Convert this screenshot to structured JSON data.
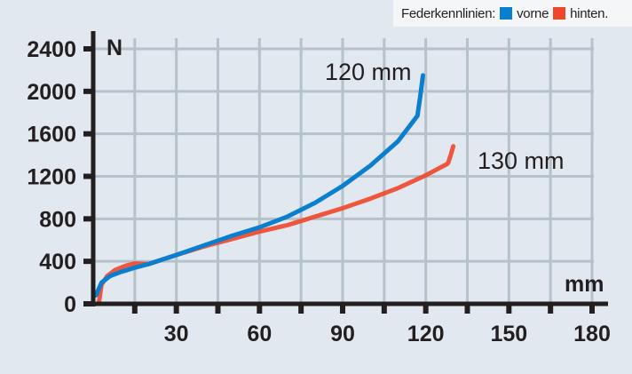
{
  "legend": {
    "title": "Federkennlinien:",
    "items": [
      {
        "label": "vorne",
        "color": "#0a7fd0"
      },
      {
        "label": "hinten.",
        "color": "#f0462a"
      }
    ]
  },
  "axes": {
    "y_unit": "N",
    "x_unit": "mm",
    "y_ticks": [
      "2400",
      "2000",
      "1600",
      "1200",
      "800",
      "400",
      "0"
    ],
    "x_ticks": [
      "30",
      "60",
      "90",
      "120",
      "150",
      "180"
    ]
  },
  "annotations": {
    "front": "120 mm",
    "rear": "130 mm"
  },
  "colors": {
    "front": "#0a7fd0",
    "rear": "#f0462a",
    "grid": "#b5c2ca",
    "axis": "#231f20",
    "background": "#e2e8ef"
  },
  "chart_data": {
    "type": "line",
    "title": "Federkennlinien",
    "xlabel": "mm",
    "ylabel": "N",
    "xlim": [
      0,
      180
    ],
    "ylim": [
      0,
      2400
    ],
    "x_ticks": [
      30,
      60,
      90,
      120,
      150,
      180
    ],
    "y_ticks": [
      0,
      400,
      800,
      1200,
      1600,
      2000,
      2400
    ],
    "grid": true,
    "legend_position": "top-right",
    "annotations": [
      {
        "text": "120 mm",
        "near_series": "vorne"
      },
      {
        "text": "130 mm",
        "near_series": "hinten"
      }
    ],
    "series": [
      {
        "name": "vorne",
        "color": "#0a7fd0",
        "x": [
          1,
          3,
          6,
          10,
          15,
          20,
          30,
          40,
          50,
          60,
          70,
          80,
          90,
          100,
          110,
          117,
          118,
          119
        ],
        "y": [
          80,
          200,
          260,
          300,
          340,
          375,
          460,
          550,
          640,
          720,
          820,
          950,
          1110,
          1300,
          1530,
          1770,
          1950,
          2150
        ]
      },
      {
        "name": "hinten",
        "color": "#f0462a",
        "x": [
          2,
          3,
          5,
          8,
          12,
          15,
          20,
          30,
          40,
          50,
          60,
          70,
          80,
          90,
          100,
          110,
          120,
          128,
          129,
          130
        ],
        "y": [
          0,
          180,
          260,
          320,
          360,
          380,
          375,
          460,
          540,
          610,
          680,
          740,
          820,
          900,
          990,
          1090,
          1210,
          1320,
          1400,
          1490
        ]
      }
    ]
  }
}
